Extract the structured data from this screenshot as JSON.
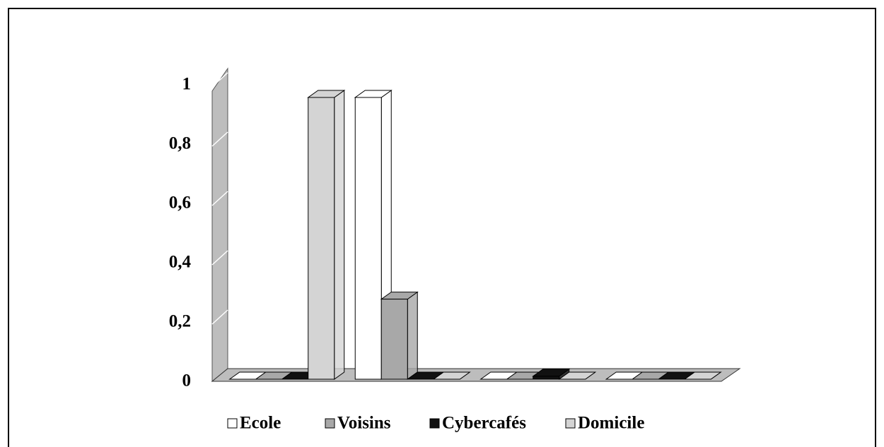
{
  "chart_data": {
    "type": "bar3d",
    "categories": [
      null,
      null,
      null,
      null
    ],
    "series": [
      {
        "name": "Ecole",
        "color": "#ffffff",
        "values": [
          0,
          0.95,
          0,
          0
        ]
      },
      {
        "name": "Voisins",
        "color": "#a8a8a8",
        "values": [
          0,
          0.27,
          0,
          0
        ]
      },
      {
        "name": "Cybercafés",
        "color": "#111111",
        "values": [
          0,
          0,
          0.01,
          0
        ]
      },
      {
        "name": "Domicile",
        "color": "#d4d4d4",
        "values": [
          0.95,
          0,
          0,
          0
        ]
      }
    ],
    "ylim": [
      0,
      1
    ],
    "yticks": [
      0,
      {
        "value": 0.2,
        "label": "0,2"
      },
      {
        "value": 0.4,
        "label": "0,4"
      },
      {
        "value": 0.6,
        "label": "0,6"
      },
      {
        "value": 0.8,
        "label": "0,8"
      },
      1
    ],
    "grid": true,
    "legend": "bottom"
  }
}
